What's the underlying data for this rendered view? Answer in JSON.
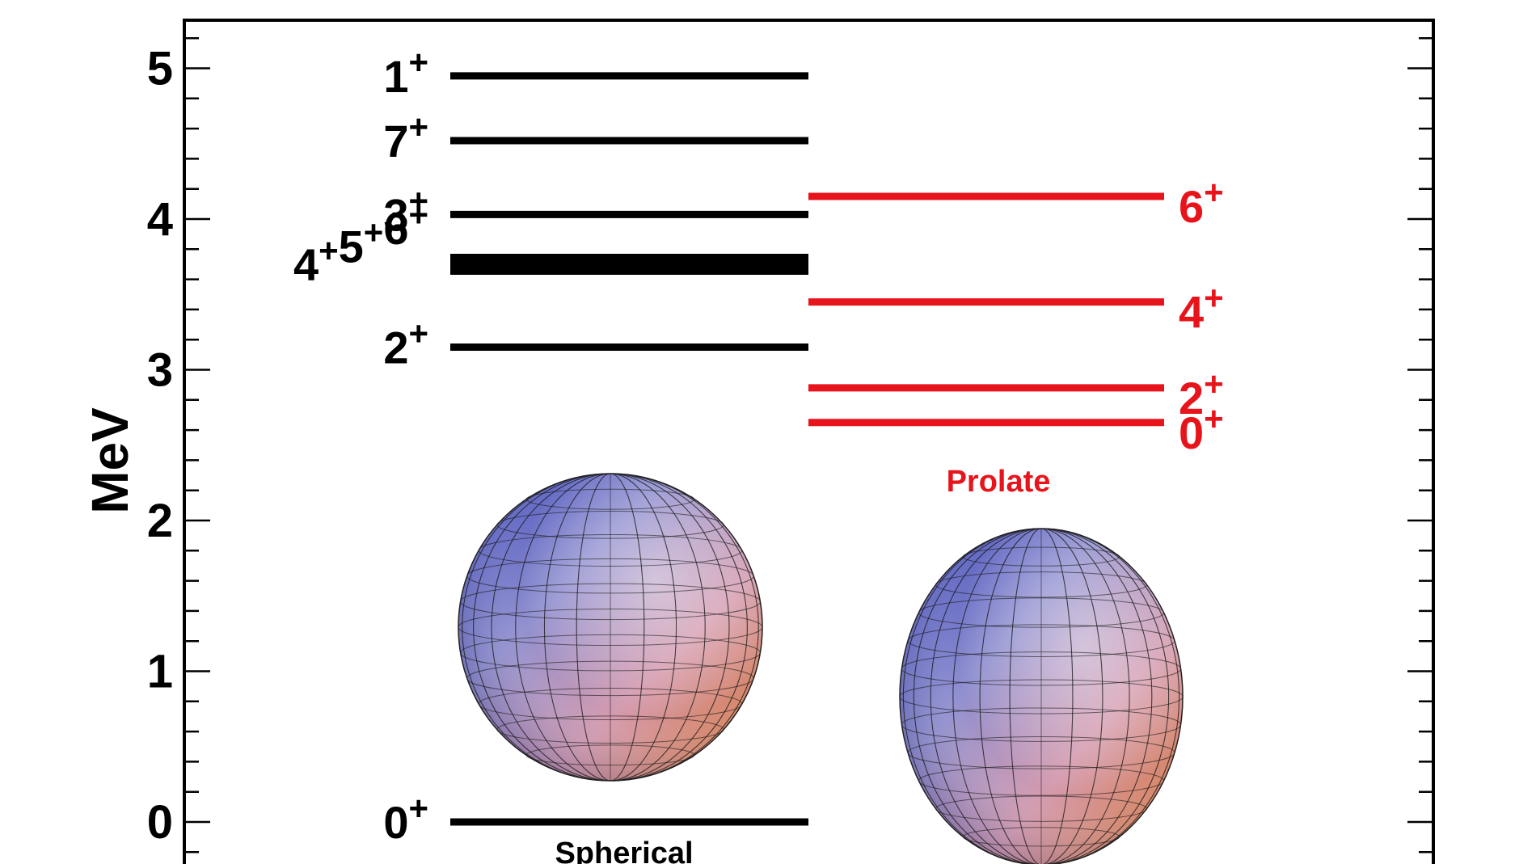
{
  "chart_data": {
    "type": "energy-level-diagram",
    "ylabel": "MeV",
    "ylim": [
      -0.3,
      5.3
    ],
    "yticks": [
      "0",
      "1",
      "2",
      "3",
      "4",
      "5"
    ],
    "colors": {
      "spherical": "#000000",
      "prolate": "#e8141b"
    },
    "series": [
      {
        "name": "Spherical",
        "levels": [
          {
            "label": "0+",
            "energy": 0.0
          },
          {
            "label": "2+",
            "energy": 3.15
          },
          {
            "label": "4+5+6+",
            "energy": 3.7
          },
          {
            "label": "3+",
            "energy": 4.03
          },
          {
            "label": "7+",
            "energy": 4.52
          },
          {
            "label": "1+",
            "energy": 4.95
          }
        ],
        "shape_icon": "sphere-icon"
      },
      {
        "name": "Prolate",
        "levels": [
          {
            "label": "0+",
            "energy": 2.65
          },
          {
            "label": "2+",
            "energy": 2.88
          },
          {
            "label": "4+",
            "energy": 3.45
          },
          {
            "label": "6+",
            "energy": 4.15
          }
        ],
        "shape_icon": "prolate-ellipsoid-icon"
      }
    ]
  }
}
